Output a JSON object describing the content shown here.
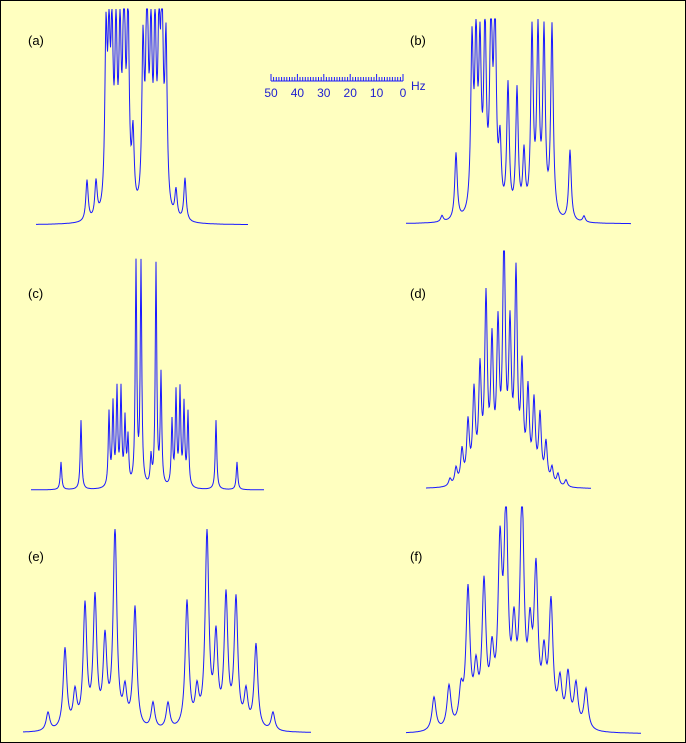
{
  "figure": {
    "colors": {
      "background": "#ffffc0",
      "spectrum": "#1a1aff",
      "border": "#000000"
    }
  },
  "scale_bar": {
    "tick_labels": [
      "50",
      "40",
      "30",
      "20",
      "10",
      "0"
    ],
    "unit": "Hz"
  },
  "chart_data": [
    {
      "type": "line",
      "label": "(a)",
      "peaks": [
        {
          "x": 51,
          "y": 0.19
        },
        {
          "x": 60,
          "y": 0.17
        },
        {
          "x": 70,
          "y": 0.79
        },
        {
          "x": 73,
          "y": 0.7
        },
        {
          "x": 76,
          "y": 0.74
        },
        {
          "x": 80,
          "y": 0.78
        },
        {
          "x": 84,
          "y": 0.76
        },
        {
          "x": 88,
          "y": 0.99
        },
        {
          "x": 92,
          "y": 0.92
        },
        {
          "x": 97,
          "y": 0.34
        },
        {
          "x": 107,
          "y": 0.75
        },
        {
          "x": 111,
          "y": 1.0
        },
        {
          "x": 115,
          "y": 0.77
        },
        {
          "x": 119,
          "y": 0.8
        },
        {
          "x": 123,
          "y": 0.75
        },
        {
          "x": 126,
          "y": 0.92
        },
        {
          "x": 130,
          "y": 0.78
        },
        {
          "x": 140,
          "y": 0.13
        },
        {
          "x": 149,
          "y": 0.2
        }
      ]
    },
    {
      "type": "line",
      "label": "(b)",
      "peaks": [
        {
          "x": 36,
          "y": 0.03
        },
        {
          "x": 50,
          "y": 0.33
        },
        {
          "x": 66,
          "y": 0.82
        },
        {
          "x": 70,
          "y": 0.8
        },
        {
          "x": 74,
          "y": 0.76
        },
        {
          "x": 79,
          "y": 0.9
        },
        {
          "x": 85,
          "y": 0.96
        },
        {
          "x": 89,
          "y": 0.97
        },
        {
          "x": 94,
          "y": 0.33
        },
        {
          "x": 102,
          "y": 0.64
        },
        {
          "x": 111,
          "y": 0.62
        },
        {
          "x": 118,
          "y": 0.3
        },
        {
          "x": 126,
          "y": 0.9
        },
        {
          "x": 132,
          "y": 0.88
        },
        {
          "x": 138,
          "y": 0.89
        },
        {
          "x": 146,
          "y": 0.94
        },
        {
          "x": 164,
          "y": 0.35
        },
        {
          "x": 178,
          "y": 0.03
        }
      ]
    },
    {
      "type": "line",
      "label": "(c)",
      "peaks": [
        {
          "x": 30,
          "y": 0.12
        },
        {
          "x": 50,
          "y": 0.3
        },
        {
          "x": 78,
          "y": 0.32
        },
        {
          "x": 82,
          "y": 0.35
        },
        {
          "x": 86,
          "y": 0.41
        },
        {
          "x": 90,
          "y": 0.41
        },
        {
          "x": 94,
          "y": 0.28
        },
        {
          "x": 97,
          "y": 0.2
        },
        {
          "x": 105,
          "y": 0.96
        },
        {
          "x": 110,
          "y": 0.96
        },
        {
          "x": 120,
          "y": 0.12
        },
        {
          "x": 125,
          "y": 0.96
        },
        {
          "x": 130,
          "y": 0.48
        },
        {
          "x": 141,
          "y": 0.28
        },
        {
          "x": 145,
          "y": 0.4
        },
        {
          "x": 149,
          "y": 0.41
        },
        {
          "x": 153,
          "y": 0.35
        },
        {
          "x": 157,
          "y": 0.32
        },
        {
          "x": 185,
          "y": 0.3
        },
        {
          "x": 206,
          "y": 0.12
        }
      ]
    },
    {
      "type": "line",
      "label": "(d)",
      "peaks": [
        {
          "x": 24,
          "y": 0.03
        },
        {
          "x": 30,
          "y": 0.07
        },
        {
          "x": 36,
          "y": 0.14
        },
        {
          "x": 42,
          "y": 0.25
        },
        {
          "x": 48,
          "y": 0.37
        },
        {
          "x": 54,
          "y": 0.45
        },
        {
          "x": 60,
          "y": 0.75
        },
        {
          "x": 66,
          "y": 0.55
        },
        {
          "x": 72,
          "y": 0.61
        },
        {
          "x": 78,
          "y": 1.0
        },
        {
          "x": 84,
          "y": 0.6
        },
        {
          "x": 90,
          "y": 0.85
        },
        {
          "x": 96,
          "y": 0.45
        },
        {
          "x": 102,
          "y": 0.37
        },
        {
          "x": 108,
          "y": 0.33
        },
        {
          "x": 114,
          "y": 0.28
        },
        {
          "x": 120,
          "y": 0.17
        },
        {
          "x": 126,
          "y": 0.07
        },
        {
          "x": 132,
          "y": 0.05
        },
        {
          "x": 140,
          "y": 0.03
        }
      ]
    },
    {
      "type": "line",
      "label": "(e)",
      "peaks": [
        {
          "x": 25,
          "y": 0.09
        },
        {
          "x": 42,
          "y": 0.4
        },
        {
          "x": 52,
          "y": 0.17
        },
        {
          "x": 62,
          "y": 0.6
        },
        {
          "x": 72,
          "y": 0.63
        },
        {
          "x": 82,
          "y": 0.42
        },
        {
          "x": 92,
          "y": 0.98
        },
        {
          "x": 102,
          "y": 0.17
        },
        {
          "x": 112,
          "y": 0.6
        },
        {
          "x": 130,
          "y": 0.13
        },
        {
          "x": 145,
          "y": 0.13
        },
        {
          "x": 164,
          "y": 0.63
        },
        {
          "x": 174,
          "y": 0.17
        },
        {
          "x": 184,
          "y": 0.96
        },
        {
          "x": 193,
          "y": 0.43
        },
        {
          "x": 203,
          "y": 0.64
        },
        {
          "x": 213,
          "y": 0.63
        },
        {
          "x": 223,
          "y": 0.17
        },
        {
          "x": 233,
          "y": 0.42
        },
        {
          "x": 250,
          "y": 0.09
        }
      ]
    },
    {
      "type": "line",
      "label": "(f)",
      "peaks": [
        {
          "x": 28,
          "y": 0.15
        },
        {
          "x": 43,
          "y": 0.19
        },
        {
          "x": 55,
          "y": 0.15
        },
        {
          "x": 62,
          "y": 0.6
        },
        {
          "x": 70,
          "y": 0.22
        },
        {
          "x": 78,
          "y": 0.61
        },
        {
          "x": 86,
          "y": 0.27
        },
        {
          "x": 94,
          "y": 0.73
        },
        {
          "x": 100,
          "y": 0.9
        },
        {
          "x": 108,
          "y": 0.36
        },
        {
          "x": 116,
          "y": 0.98
        },
        {
          "x": 124,
          "y": 0.35
        },
        {
          "x": 130,
          "y": 0.65
        },
        {
          "x": 138,
          "y": 0.27
        },
        {
          "x": 145,
          "y": 0.53
        },
        {
          "x": 154,
          "y": 0.19
        },
        {
          "x": 162,
          "y": 0.23
        },
        {
          "x": 170,
          "y": 0.19
        },
        {
          "x": 180,
          "y": 0.18
        }
      ]
    }
  ]
}
